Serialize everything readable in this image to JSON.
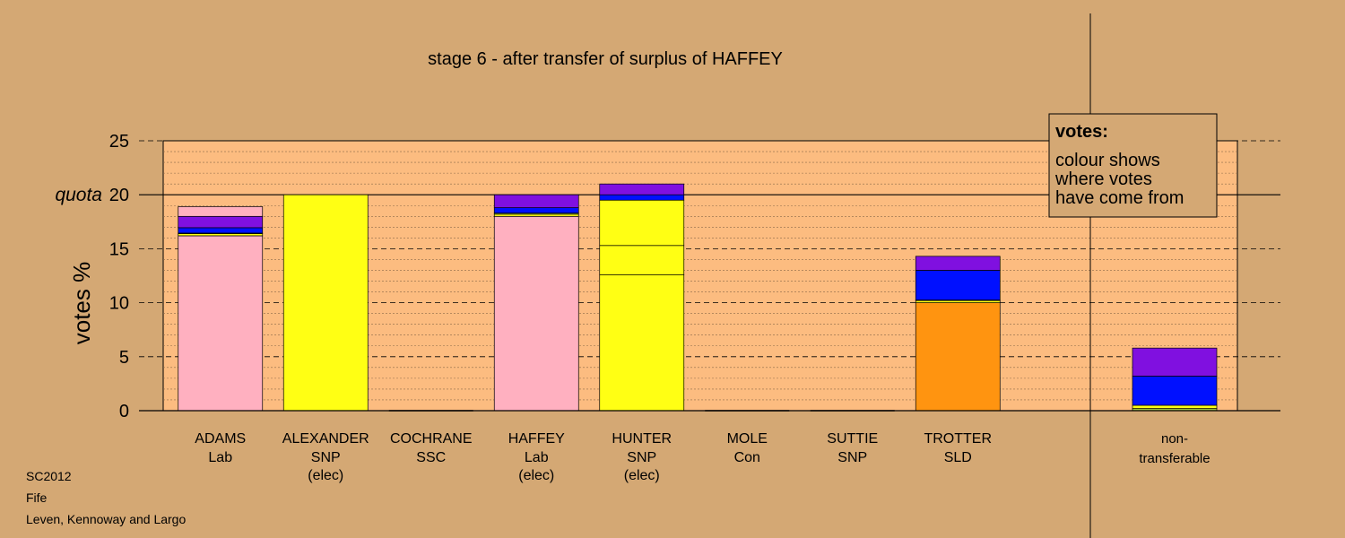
{
  "chart_data": {
    "type": "bar",
    "stacked": true,
    "title": "stage 6 - after transfer of surplus of HAFFEY",
    "ylabel": "votes %",
    "ylim": [
      0,
      25
    ],
    "yticks": [
      0,
      5,
      10,
      15,
      20,
      25
    ],
    "quota": 20,
    "quota_label": "quota",
    "grid": true,
    "legend": {
      "title": "votes:",
      "lines": [
        "colour shows",
        "where votes",
        "have come from"
      ],
      "position": "top-right"
    },
    "colors": {
      "lab": "#ffb0c0",
      "snp": "#ffff14",
      "sld": "#ff9410",
      "con": "#0010ff",
      "ssc": "#8010e0",
      "green": "#a0c040"
    },
    "candidates": [
      {
        "name": "ADAMS",
        "party": "Lab",
        "status": "",
        "segments": [
          {
            "source": "lab",
            "value": 16.2
          },
          {
            "source": "snp",
            "value": 0.2
          },
          {
            "source": "green",
            "value": 0.05
          },
          {
            "source": "con",
            "value": 0.5
          },
          {
            "source": "ssc",
            "value": 1.05
          },
          {
            "source": "lab",
            "value": 0.9
          }
        ]
      },
      {
        "name": "ALEXANDER",
        "party": "SNP",
        "status": "(elec)",
        "segments": [
          {
            "source": "snp",
            "value": 20.0
          }
        ]
      },
      {
        "name": "COCHRANE",
        "party": "SSC",
        "status": "",
        "segments": []
      },
      {
        "name": "HAFFEY",
        "party": "Lab",
        "status": "(elec)",
        "segments": [
          {
            "source": "lab",
            "value": 18.0
          },
          {
            "source": "snp",
            "value": 0.2
          },
          {
            "source": "green",
            "value": 0.1
          },
          {
            "source": "con",
            "value": 0.5
          },
          {
            "source": "ssc",
            "value": 1.2
          }
        ]
      },
      {
        "name": "HUNTER",
        "party": "SNP",
        "status": "(elec)",
        "segments": [
          {
            "source": "snp",
            "value": 12.6
          },
          {
            "source": "snp",
            "value": 2.7
          },
          {
            "source": "snp",
            "value": 4.2
          },
          {
            "source": "con",
            "value": 0.5
          },
          {
            "source": "ssc",
            "value": 1.0
          }
        ]
      },
      {
        "name": "MOLE",
        "party": "Con",
        "status": "",
        "segments": []
      },
      {
        "name": "SUTTIE",
        "party": "SNP",
        "status": "",
        "segments": []
      },
      {
        "name": "TROTTER",
        "party": "SLD",
        "status": "",
        "segments": [
          {
            "source": "sld",
            "value": 10.0
          },
          {
            "source": "snp",
            "value": 0.2
          },
          {
            "source": "green",
            "value": 0.05
          },
          {
            "source": "con",
            "value": 2.75
          },
          {
            "source": "ssc",
            "value": 1.3
          }
        ]
      }
    ],
    "nontransferable": {
      "label_line1": "non-",
      "label_line2": "transferable",
      "segments": [
        {
          "source": "green",
          "value": 0.2
        },
        {
          "source": "snp",
          "value": 0.3
        },
        {
          "source": "con",
          "value": 2.7
        },
        {
          "source": "ssc",
          "value": 2.6
        }
      ]
    }
  },
  "meta": {
    "election": "SC2012",
    "council": "Fife",
    "ward": "Leven, Kennoway and Largo"
  }
}
